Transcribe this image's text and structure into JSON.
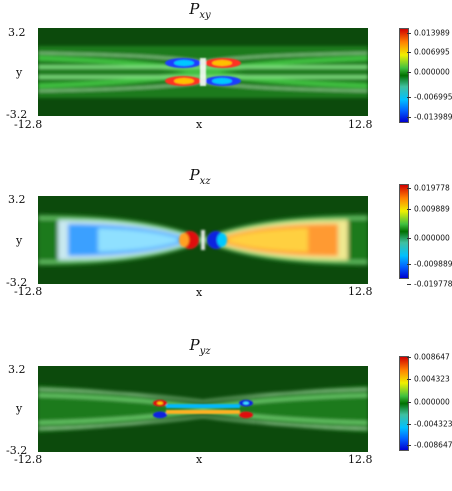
{
  "panels": [
    {
      "title_main": "P",
      "title_sub": "xy",
      "x_min": "-12.8",
      "x_max": "12.8",
      "x_label": "x",
      "y_min": "-3.2",
      "y_max": "3.2",
      "y_label": "y",
      "colorbar": [
        "0.013989",
        "0.006995",
        "0.000000",
        "-0.006995",
        "-0.013989"
      ]
    },
    {
      "title_main": "P",
      "title_sub": "xz",
      "x_min": "-12.8",
      "x_max": "12.8",
      "x_label": "x",
      "y_min": "-3.2",
      "y_max": "3.2",
      "y_label": "y",
      "colorbar": [
        "0.019778",
        "0.009889",
        "0.000000",
        "-0.009889",
        "-0.019778"
      ]
    },
    {
      "title_main": "P",
      "title_sub": "yz",
      "x_min": "-12.8",
      "x_max": "12.8",
      "x_label": "x",
      "y_min": "-3.2",
      "y_max": "3.2",
      "y_label": "y",
      "colorbar": [
        "0.008647",
        "0.004323",
        "0.000000",
        "-0.004323",
        "-0.008647"
      ]
    }
  ],
  "chart_data": [
    {
      "type": "heatmap",
      "title": "P_xy",
      "xlabel": "x",
      "ylabel": "y",
      "xlim": [
        -12.8,
        12.8
      ],
      "ylim": [
        -3.2,
        3.2
      ],
      "colorbar_range": [
        -0.013989,
        0.013989
      ],
      "colorbar_ticks": [
        0.013989,
        0.006995,
        0.0,
        -0.006995,
        -0.013989
      ],
      "colormap": [
        "#0000ff",
        "#00ffff",
        "#008000",
        "#ffff00",
        "#ff0000"
      ]
    },
    {
      "type": "heatmap",
      "title": "P_xz",
      "xlabel": "x",
      "ylabel": "y",
      "xlim": [
        -12.8,
        12.8
      ],
      "ylim": [
        -3.2,
        3.2
      ],
      "colorbar_range": [
        -0.019778,
        0.019778
      ],
      "colorbar_ticks": [
        0.019778,
        0.009889,
        0.0,
        -0.009889,
        -0.019778
      ],
      "colormap": [
        "#0000ff",
        "#00ffff",
        "#008000",
        "#ffff00",
        "#ff0000"
      ]
    },
    {
      "type": "heatmap",
      "title": "P_yz",
      "xlabel": "x",
      "ylabel": "y",
      "xlim": [
        -12.8,
        12.8
      ],
      "ylim": [
        -3.2,
        3.2
      ],
      "colorbar_range": [
        -0.008647,
        0.008647
      ],
      "colorbar_ticks": [
        0.008647,
        0.004323,
        0.0,
        -0.004323,
        -0.008647
      ],
      "colormap": [
        "#0000ff",
        "#00ffff",
        "#008000",
        "#ffff00",
        "#ff0000"
      ]
    }
  ]
}
